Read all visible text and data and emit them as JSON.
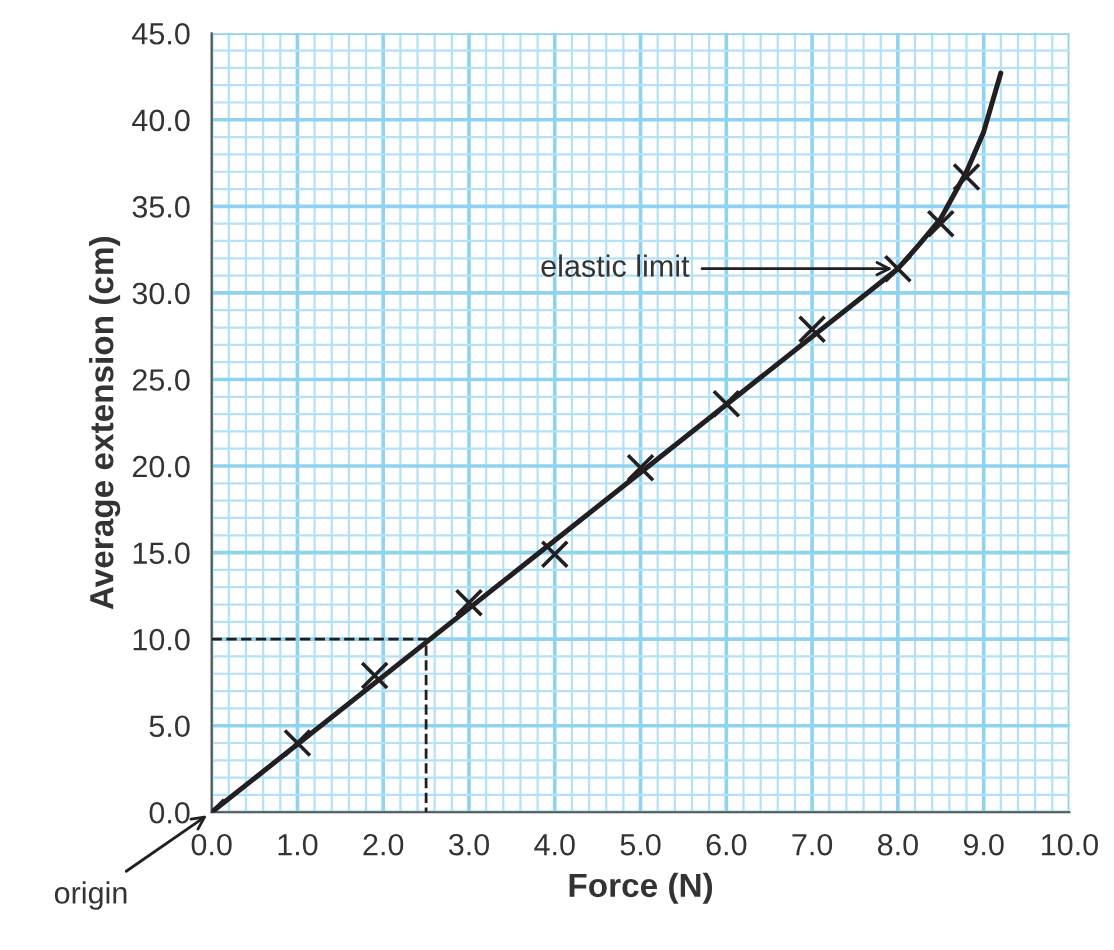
{
  "chart_data": {
    "type": "scatter",
    "xlabel": "Force (N)",
    "ylabel": "Average extension (cm)",
    "xlim": [
      0,
      10
    ],
    "ylim": [
      0,
      45
    ],
    "xticks": [
      {
        "value": 0,
        "label": "0.0"
      },
      {
        "value": 0.2,
        "label": null
      },
      {
        "value": 0.4,
        "label": null
      },
      {
        "value": 0.6,
        "label": null
      },
      {
        "value": 0.8,
        "label": null
      },
      {
        "value": 1,
        "label": "1.0"
      },
      {
        "value": 1.2,
        "label": null
      },
      {
        "value": 1.4,
        "label": null
      },
      {
        "value": 1.6,
        "label": null
      },
      {
        "value": 1.8,
        "label": null
      },
      {
        "value": 2,
        "label": "2.0"
      },
      {
        "value": 2.2,
        "label": null
      },
      {
        "value": 2.4,
        "label": null
      },
      {
        "value": 2.6,
        "label": null
      },
      {
        "value": 2.8,
        "label": null
      },
      {
        "value": 3,
        "label": "3.0"
      },
      {
        "value": 3.2,
        "label": null
      },
      {
        "value": 3.4,
        "label": null
      },
      {
        "value": 3.6,
        "label": null
      },
      {
        "value": 3.8,
        "label": null
      },
      {
        "value": 4,
        "label": "4.0"
      },
      {
        "value": 4.2,
        "label": null
      },
      {
        "value": 4.4,
        "label": null
      },
      {
        "value": 4.6,
        "label": null
      },
      {
        "value": 4.8,
        "label": null
      },
      {
        "value": 5,
        "label": "5.0"
      },
      {
        "value": 5.2,
        "label": null
      },
      {
        "value": 5.4,
        "label": null
      },
      {
        "value": 5.6,
        "label": null
      },
      {
        "value": 5.8,
        "label": null
      },
      {
        "value": 6,
        "label": "6.0"
      },
      {
        "value": 6.2,
        "label": null
      },
      {
        "value": 6.4,
        "label": null
      },
      {
        "value": 6.6,
        "label": null
      },
      {
        "value": 6.8,
        "label": null
      },
      {
        "value": 7,
        "label": "7.0"
      },
      {
        "value": 7.2,
        "label": null
      },
      {
        "value": 7.4,
        "label": null
      },
      {
        "value": 7.6,
        "label": null
      },
      {
        "value": 7.8,
        "label": null
      },
      {
        "value": 8,
        "label": "8.0"
      },
      {
        "value": 8.2,
        "label": null
      },
      {
        "value": 8.4,
        "label": null
      },
      {
        "value": 8.6,
        "label": null
      },
      {
        "value": 8.8,
        "label": null
      },
      {
        "value": 9,
        "label": "9.0"
      },
      {
        "value": 9.2,
        "label": null
      },
      {
        "value": 9.4,
        "label": null
      },
      {
        "value": 9.6,
        "label": null
      },
      {
        "value": 9.8,
        "label": null
      },
      {
        "value": 10,
        "label": "10.0"
      }
    ],
    "yticks": [
      {
        "value": 0,
        "label": "0.0"
      },
      {
        "value": 1,
        "label": null
      },
      {
        "value": 2,
        "label": null
      },
      {
        "value": 3,
        "label": null
      },
      {
        "value": 4,
        "label": null
      },
      {
        "value": 5,
        "label": "5.0"
      },
      {
        "value": 6,
        "label": null
      },
      {
        "value": 7,
        "label": null
      },
      {
        "value": 8,
        "label": null
      },
      {
        "value": 9,
        "label": null
      },
      {
        "value": 10,
        "label": "10.0"
      },
      {
        "value": 11,
        "label": null
      },
      {
        "value": 12,
        "label": null
      },
      {
        "value": 13,
        "label": null
      },
      {
        "value": 14,
        "label": null
      },
      {
        "value": 15,
        "label": "15.0"
      },
      {
        "value": 16,
        "label": null
      },
      {
        "value": 17,
        "label": null
      },
      {
        "value": 18,
        "label": null
      },
      {
        "value": 19,
        "label": null
      },
      {
        "value": 20,
        "label": "20.0"
      },
      {
        "value": 21,
        "label": null
      },
      {
        "value": 22,
        "label": null
      },
      {
        "value": 23,
        "label": null
      },
      {
        "value": 24,
        "label": null
      },
      {
        "value": 25,
        "label": "25.0"
      },
      {
        "value": 26,
        "label": null
      },
      {
        "value": 27,
        "label": null
      },
      {
        "value": 28,
        "label": null
      },
      {
        "value": 29,
        "label": null
      },
      {
        "value": 30,
        "label": "30.0"
      },
      {
        "value": 31,
        "label": null
      },
      {
        "value": 32,
        "label": null
      },
      {
        "value": 33,
        "label": null
      },
      {
        "value": 34,
        "label": null
      },
      {
        "value": 35,
        "label": "35.0"
      },
      {
        "value": 36,
        "label": null
      },
      {
        "value": 37,
        "label": null
      },
      {
        "value": 38,
        "label": null
      },
      {
        "value": 39,
        "label": null
      },
      {
        "value": 40,
        "label": "40.0"
      },
      {
        "value": 41,
        "label": null
      },
      {
        "value": 42,
        "label": null
      },
      {
        "value": 43,
        "label": null
      },
      {
        "value": 44,
        "label": null
      },
      {
        "value": 45,
        "label": "45.0"
      }
    ],
    "grid": true,
    "series": [
      {
        "marker": "cross",
        "color": "#231f20",
        "x": [
          0,
          1,
          1.9,
          3,
          4,
          5,
          6,
          7,
          8,
          8.5,
          8.8
        ],
        "values": [
          0,
          4,
          7.9,
          12.1,
          14.9,
          19.9,
          23.6,
          27.9,
          31.4,
          34,
          36.7
        ]
      },
      {
        "type": "line",
        "marker": "none",
        "line_style": "solid",
        "color": "#231f20",
        "x": [
          0,
          8,
          8.25,
          8.5,
          8.8,
          9.0,
          9.2
        ],
        "values": [
          0,
          31.4,
          32.8,
          34.3,
          37,
          39.3,
          42.7
        ]
      },
      {
        "type": "line",
        "marker": "none",
        "line_style": "dashed",
        "color": "#231f20",
        "x": [
          0,
          2.5,
          2.5
        ],
        "values": [
          10,
          10,
          0
        ]
      }
    ],
    "annotations": [
      {
        "text": "elastic limit",
        "x": 8,
        "y": 31.4
      },
      {
        "text": "origin",
        "x": 0,
        "y": 0
      }
    ]
  }
}
